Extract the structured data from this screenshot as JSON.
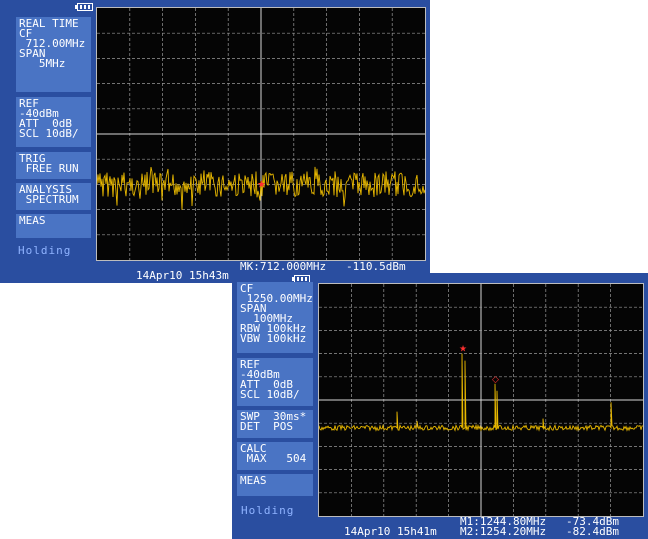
{
  "screen1": {
    "panel_mode": [
      "REAL TIME",
      "CF",
      " 712.00MHz",
      "SPAN",
      "   5MHz"
    ],
    "panel_ref": [
      "REF",
      "-40dBm",
      "ATT  0dB",
      "SCL 10dB/"
    ],
    "panel_trig": [
      "TRIG",
      " FREE RUN"
    ],
    "panel_analysis": [
      "ANALYSIS",
      " SPECTRUM"
    ],
    "panel_meas": [
      "MEAS"
    ],
    "holding": "Holding",
    "timestamp": "14Apr10 15h43m",
    "marker_readout": "MK:712.000MHz   -110.5dBm"
  },
  "screen2": {
    "panel_cf": [
      "CF",
      " 1250.00MHz",
      "SPAN",
      "  100MHz",
      "RBW 100kHz",
      "VBW 100kHz"
    ],
    "panel_ref": [
      "REF",
      "-40dBm",
      "ATT  0dB",
      "SCL 10dB/"
    ],
    "panel_swp": [
      "SWP  30ms*",
      "DET  POS"
    ],
    "panel_calc": [
      "CALC",
      " MAX   504"
    ],
    "panel_meas": [
      "MEAS"
    ],
    "holding": "Holding",
    "timestamp": "14Apr10 15h41m",
    "marker1_readout": "M1:1244.80MHz   -73.4dBm",
    "marker2_readout": "M2:1254.20MHz   -82.4dBm"
  },
  "colors": {
    "screen_bg": "#2a4ea0",
    "panel_bg": "#4a74c4",
    "trace": "#e8b800",
    "marker": "#ff3030"
  }
}
